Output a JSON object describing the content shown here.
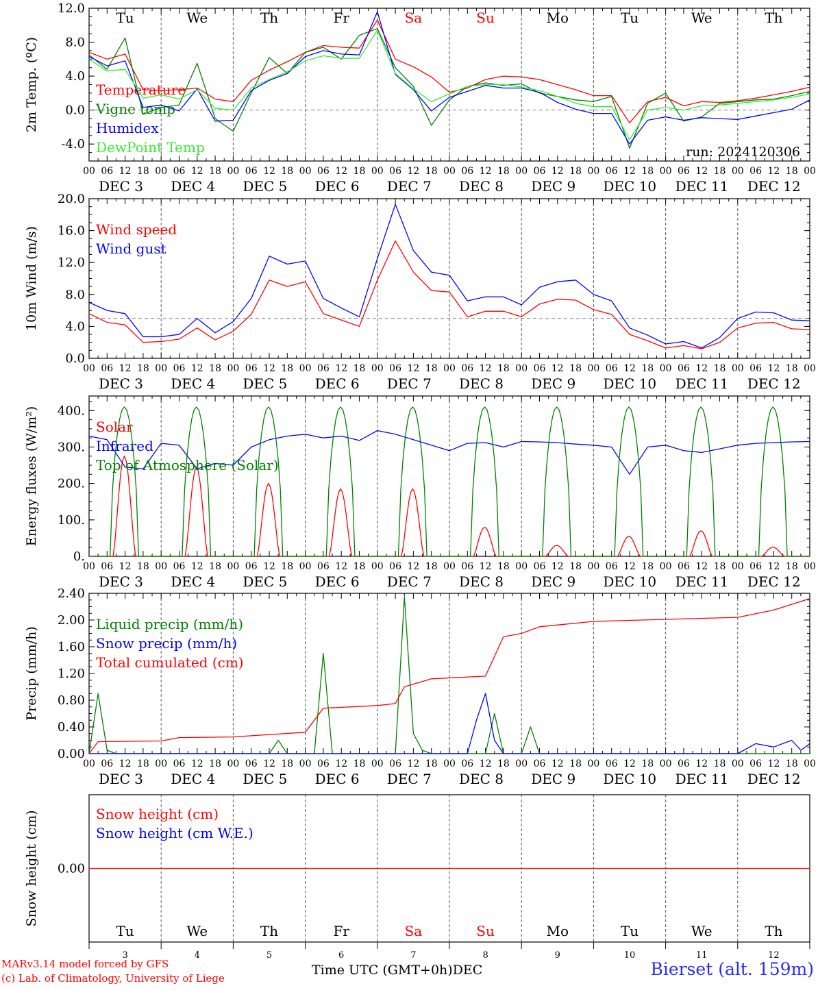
{
  "colors": {
    "red": "#ff0000",
    "green": "#008000",
    "blue": "#0000ff",
    "lightgreen": "#33ee33",
    "dark_red": "#ff0000",
    "station": "#2a2aff"
  },
  "weekdays": [
    "Tu",
    "We",
    "Th",
    "Fr",
    "Sa",
    "Su",
    "Mo",
    "Tu",
    "We",
    "Th"
  ],
  "weekend_days": [
    "Sa",
    "Su"
  ],
  "hour_labels": [
    "00",
    "06",
    "12",
    "18"
  ],
  "date_labels": [
    "DEC  3",
    "DEC  4",
    "DEC  5",
    "DEC  6",
    "DEC  7",
    "DEC  8",
    "DEC  9",
    "DEC 10",
    "DEC 11",
    "DEC 12"
  ],
  "bottom_day_numbers": [
    "3",
    "4",
    "5",
    "6",
    "7",
    "8",
    "9",
    "10",
    "11",
    "12"
  ],
  "footer": {
    "model_line": "MARv3.14 model forced by GFS",
    "copyright_line": "(c) Lab. of Climatology, University of Liege",
    "time_axis_label": "Time UTC (GMT+0h)",
    "month_label": "DEC",
    "station": "Bierset (alt. 159m)"
  },
  "chart_data": [
    {
      "type": "line",
      "ylabel": "2m Temp. (ºC)",
      "ylim": [
        -6,
        12
      ],
      "yticks": [
        "12.0",
        "8.0",
        "4.0",
        "0.0",
        "-4.0"
      ],
      "ytick_values": [
        12,
        8,
        4,
        0,
        -4
      ],
      "reference_line": 0,
      "annotation": "run: 2024120306",
      "x": [
        0,
        6,
        12,
        18,
        24,
        30,
        36,
        42,
        48,
        54,
        60,
        66,
        72,
        78,
        84,
        90,
        96,
        102,
        108,
        114,
        120,
        126,
        132,
        138,
        144,
        150,
        156,
        162,
        168,
        174,
        180,
        186,
        192,
        198,
        204,
        210,
        216,
        222,
        228,
        234,
        240
      ],
      "series": [
        {
          "name": "Temperature",
          "color": "red",
          "values": [
            6.8,
            6.0,
            6.6,
            2.4,
            2.3,
            2.4,
            2.6,
            1.3,
            1.0,
            3.5,
            4.7,
            5.7,
            6.8,
            7.6,
            7.4,
            7.3,
            10.6,
            6.0,
            5.1,
            3.9,
            2.1,
            2.6,
            3.6,
            4.0,
            3.9,
            3.6,
            3.0,
            2.4,
            1.7,
            1.7,
            -1.5,
            1.0,
            1.5,
            0.5,
            1.0,
            0.9,
            1.1,
            1.4,
            1.8,
            2.2,
            2.7
          ]
        },
        {
          "name": "Vigne temp",
          "color": "green",
          "values": [
            6.5,
            4.8,
            8.5,
            -0.5,
            0.3,
            0.6,
            5.5,
            -1.0,
            -2.5,
            2.0,
            6.2,
            4.3,
            6.8,
            7.4,
            6.0,
            8.8,
            9.6,
            5.0,
            2.8,
            -1.8,
            1.2,
            2.8,
            3.2,
            2.9,
            3.1,
            2.0,
            1.6,
            1.2,
            1.0,
            1.6,
            -4.5,
            0.8,
            2.0,
            -1.3,
            -0.8,
            0.8,
            1.0,
            1.2,
            1.3,
            1.7,
            2.2
          ]
        },
        {
          "name": "Humidex",
          "color": "blue",
          "values": [
            6.3,
            5.2,
            5.8,
            0.3,
            0.6,
            -0.1,
            2.5,
            -1.3,
            -1.2,
            2.3,
            3.5,
            4.3,
            6.3,
            7.0,
            6.6,
            6.5,
            11.6,
            4.2,
            2.4,
            -0.1,
            1.5,
            2.2,
            2.9,
            2.6,
            2.6,
            2.1,
            0.9,
            0.1,
            -0.4,
            -0.4,
            -4.0,
            -1.2,
            -0.8,
            -1.2,
            -0.9,
            -1.0,
            -1.1,
            -0.7,
            -0.3,
            0.1,
            1.2
          ]
        },
        {
          "name": "DewPoint Temp",
          "color": "lightgreen",
          "values": [
            6.0,
            4.6,
            4.8,
            1.4,
            1.8,
            1.3,
            2.4,
            0.2,
            0.0,
            2.6,
            3.6,
            4.5,
            5.8,
            6.4,
            6.1,
            6.1,
            9.4,
            4.3,
            2.5,
            1.0,
            1.9,
            2.8,
            3.0,
            3.0,
            2.7,
            2.3,
            1.6,
            0.8,
            0.4,
            0.4,
            -3.5,
            0.0,
            0.3,
            0.0,
            0.5,
            0.6,
            0.8,
            1.0,
            1.2,
            1.5,
            1.9
          ]
        }
      ]
    },
    {
      "type": "line",
      "ylabel": "10m Wind (m/s)",
      "ylim": [
        0,
        20
      ],
      "yticks": [
        "20.0",
        "16.0",
        "12.0",
        "8.0",
        "4.0",
        "0.0"
      ],
      "ytick_values": [
        20,
        16,
        12,
        8,
        4,
        0
      ],
      "reference_line": 5,
      "x": [
        0,
        6,
        12,
        18,
        24,
        30,
        36,
        42,
        48,
        54,
        60,
        66,
        72,
        78,
        84,
        90,
        96,
        102,
        108,
        114,
        120,
        126,
        132,
        138,
        144,
        150,
        156,
        162,
        168,
        174,
        180,
        186,
        192,
        198,
        204,
        210,
        216,
        222,
        228,
        234,
        240
      ],
      "series": [
        {
          "name": "Wind speed",
          "color": "red",
          "values": [
            5.6,
            4.5,
            4.2,
            2.0,
            2.1,
            2.4,
            3.8,
            2.3,
            3.4,
            5.5,
            9.8,
            9.0,
            9.6,
            5.6,
            4.8,
            4.0,
            9.8,
            14.7,
            10.8,
            8.5,
            8.3,
            5.2,
            5.9,
            5.9,
            5.2,
            6.8,
            7.4,
            7.3,
            6.1,
            5.5,
            3.0,
            2.2,
            1.3,
            1.6,
            1.2,
            2.0,
            3.8,
            4.4,
            4.5,
            3.7,
            3.6
          ]
        },
        {
          "name": "Wind gust",
          "color": "blue",
          "values": [
            7.0,
            6.0,
            5.6,
            2.7,
            2.7,
            3.0,
            5.0,
            3.2,
            4.6,
            7.5,
            12.8,
            11.8,
            12.2,
            7.5,
            6.3,
            5.2,
            12.5,
            19.3,
            13.5,
            10.8,
            10.4,
            7.2,
            7.7,
            7.7,
            6.7,
            8.9,
            9.6,
            9.8,
            8.0,
            7.2,
            3.8,
            2.9,
            1.8,
            2.1,
            1.3,
            2.6,
            5.0,
            5.8,
            5.7,
            4.8,
            4.7
          ]
        }
      ]
    },
    {
      "type": "line",
      "ylabel": "Energy fluxes (W/m²)",
      "ylim": [
        0,
        440
      ],
      "yticks": [
        "400.",
        "300.",
        "200.",
        "100.",
        "0."
      ],
      "ytick_values": [
        400,
        300,
        200,
        100,
        0
      ],
      "solar_daily_peaks": [
        275,
        245,
        200,
        185,
        185,
        80,
        30,
        55,
        70,
        25
      ],
      "toa_daily_peak": 410,
      "series": [
        {
          "name": "Solar",
          "color": "red",
          "values": [
            0,
            275,
            0,
            245,
            0,
            200,
            0,
            185,
            0,
            185,
            0,
            80,
            0,
            30,
            0,
            55,
            0,
            70,
            0,
            25,
            0
          ]
        },
        {
          "name": "Infrared",
          "color": "blue",
          "x": [
            0,
            6,
            12,
            18,
            24,
            30,
            36,
            42,
            48,
            54,
            60,
            66,
            72,
            78,
            84,
            90,
            96,
            102,
            108,
            114,
            120,
            126,
            132,
            138,
            144,
            150,
            156,
            162,
            168,
            174,
            180,
            186,
            192,
            198,
            204,
            210,
            216,
            222,
            228,
            234,
            240
          ],
          "values": [
            330,
            320,
            245,
            240,
            310,
            305,
            240,
            255,
            250,
            300,
            320,
            330,
            335,
            325,
            330,
            318,
            345,
            335,
            320,
            305,
            290,
            310,
            312,
            300,
            315,
            314,
            312,
            308,
            305,
            300,
            225,
            300,
            305,
            290,
            285,
            295,
            305,
            310,
            312,
            314,
            315
          ]
        },
        {
          "name": "Top of Atmosphere (Solar)",
          "color": "green",
          "values": [
            0,
            410,
            0,
            410,
            0,
            410,
            0,
            410,
            0,
            410,
            0,
            410,
            0,
            410,
            0,
            410,
            0,
            410,
            0,
            410,
            0
          ]
        }
      ]
    },
    {
      "type": "line",
      "ylabel": "Precip (mm/h)",
      "ylim": [
        0,
        2.4
      ],
      "yticks": [
        "2.40",
        "2.00",
        "1.60",
        "1.20",
        "0.80",
        "0.40",
        "0.00"
      ],
      "ytick_values": [
        2.4,
        2.0,
        1.6,
        1.2,
        0.8,
        0.4,
        0.0
      ],
      "series": [
        {
          "name": "Liquid precip (mm/h)",
          "color": "green",
          "points": [
            [
              0,
              0
            ],
            [
              3,
              0.9
            ],
            [
              6,
              0.05
            ],
            [
              9,
              0
            ],
            [
              60,
              0
            ],
            [
              63,
              0.2
            ],
            [
              66,
              0
            ],
            [
              75,
              0
            ],
            [
              78,
              1.5
            ],
            [
              81,
              0
            ],
            [
              102,
              0
            ],
            [
              105,
              2.35
            ],
            [
              108,
              0.3
            ],
            [
              111,
              0.05
            ],
            [
              114,
              0
            ],
            [
              132,
              0
            ],
            [
              135,
              0.6
            ],
            [
              138,
              0
            ],
            [
              144,
              0
            ],
            [
              147,
              0.4
            ],
            [
              150,
              0
            ],
            [
              240,
              0
            ]
          ]
        },
        {
          "name": "Snow precip (mm/h)",
          "color": "blue",
          "points": [
            [
              0,
              0
            ],
            [
              126,
              0
            ],
            [
              129,
              0.5
            ],
            [
              132,
              0.9
            ],
            [
              135,
              0.2
            ],
            [
              138,
              0
            ],
            [
              216,
              0
            ],
            [
              222,
              0.15
            ],
            [
              228,
              0.1
            ],
            [
              234,
              0.2
            ],
            [
              237,
              0.05
            ],
            [
              240,
              0.15
            ]
          ]
        },
        {
          "name": "Total cumulated (cm)",
          "color": "red",
          "points": [
            [
              0,
              0
            ],
            [
              3,
              0.18
            ],
            [
              24,
              0.19
            ],
            [
              30,
              0.24
            ],
            [
              48,
              0.25
            ],
            [
              72,
              0.32
            ],
            [
              78,
              0.68
            ],
            [
              96,
              0.72
            ],
            [
              102,
              0.75
            ],
            [
              105,
              1.0
            ],
            [
              114,
              1.12
            ],
            [
              132,
              1.16
            ],
            [
              138,
              1.75
            ],
            [
              144,
              1.8
            ],
            [
              150,
              1.9
            ],
            [
              168,
              1.98
            ],
            [
              192,
              2.01
            ],
            [
              216,
              2.04
            ],
            [
              228,
              2.15
            ],
            [
              240,
              2.32
            ]
          ]
        }
      ]
    },
    {
      "type": "line",
      "ylabel": "Snow height (cm)",
      "ylim": [
        -1,
        1
      ],
      "yticks": [
        "0.00"
      ],
      "ytick_values": [
        0
      ],
      "series": [
        {
          "name": "Snow height (cm)",
          "color": "red",
          "points": [
            [
              0,
              0
            ],
            [
              240,
              0
            ]
          ]
        },
        {
          "name": "Snow height (cm W.E.)",
          "color": "blue",
          "points": []
        }
      ]
    }
  ]
}
